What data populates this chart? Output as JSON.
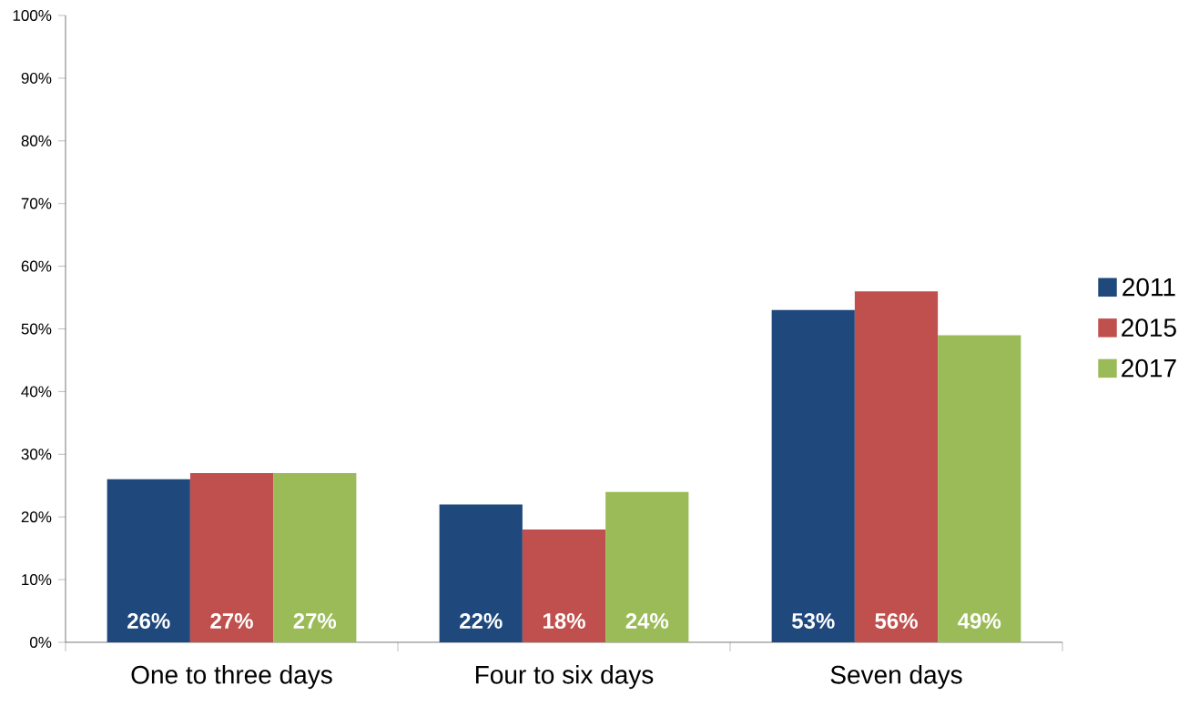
{
  "chart_data": {
    "type": "bar",
    "categories": [
      "One to three days",
      "Four to six days",
      "Seven days"
    ],
    "series": [
      {
        "name": "2011",
        "color": "#1f497d",
        "values": [
          26,
          22,
          53
        ],
        "value_labels": [
          "26%",
          "22%",
          "53%"
        ]
      },
      {
        "name": "2015",
        "color": "#c0504d",
        "values": [
          27,
          18,
          56
        ],
        "value_labels": [
          "27%",
          "18%",
          "56%"
        ]
      },
      {
        "name": "2017",
        "color": "#9bbb59",
        "values": [
          27,
          24,
          49
        ],
        "value_labels": [
          "27%",
          "24%",
          "49%"
        ]
      }
    ],
    "ylim": [
      0,
      100
    ],
    "yticks": [
      {
        "value": 0,
        "label": "0%"
      },
      {
        "value": 10,
        "label": "10%"
      },
      {
        "value": 20,
        "label": "20%"
      },
      {
        "value": 30,
        "label": "30%"
      },
      {
        "value": 40,
        "label": "40%"
      },
      {
        "value": 50,
        "label": "50%"
      },
      {
        "value": 60,
        "label": "60%"
      },
      {
        "value": 70,
        "label": "70%"
      },
      {
        "value": 80,
        "label": "80%"
      },
      {
        "value": 90,
        "label": "90%"
      },
      {
        "value": 100,
        "label": "100%"
      }
    ],
    "grid": false,
    "legend": "right"
  }
}
